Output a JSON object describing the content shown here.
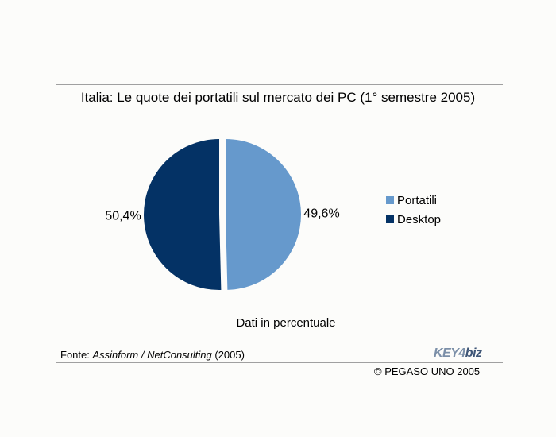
{
  "chart_data": {
    "type": "pie",
    "title": "Italia: Le quote dei portatili sul mercato dei PC (1° semestre 2005)",
    "categories": [
      "Portatili",
      "Desktop"
    ],
    "values": [
      49.6,
      50.4
    ],
    "value_labels": [
      "49,6%",
      "50,4%"
    ],
    "colors": [
      "#6699cc",
      "#043265"
    ],
    "legend_position": "right",
    "note": "Dati in percentuale"
  },
  "source": {
    "prefix": "Fonte: ",
    "italic": "Assinform / NetConsulting",
    "suffix": " (2005)"
  },
  "logo": {
    "part1": "KEY4",
    "part2": "biz"
  },
  "copyright": "© PEGASO UNO 2005"
}
